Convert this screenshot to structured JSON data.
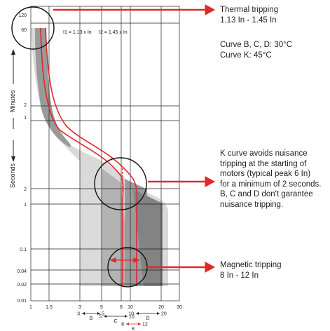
{
  "left_axis": {
    "minutes_label": "Minutes",
    "seconds_label": "Seconds",
    "minute_ticks": [
      "120",
      "60",
      "2",
      "1"
    ],
    "second_ticks": [
      "2",
      "1",
      "0.1",
      "0.04",
      "0.02",
      "0.01"
    ]
  },
  "x_axis": {
    "ticks": [
      "1",
      "1.5",
      "3",
      "5",
      "8",
      "10",
      "20",
      "30"
    ]
  },
  "thresholds": {
    "i1": "I1 = 1.13 x In",
    "i2": "I2 = 1.45 x In"
  },
  "ranges": [
    {
      "letter": "B",
      "low": "3",
      "high": "5"
    },
    {
      "letter": "C",
      "low": "5",
      "high": "10"
    },
    {
      "letter": "D",
      "low": "10",
      "high": "20"
    },
    {
      "letter": "K",
      "low": "8",
      "high": "12"
    }
  ],
  "annotations": {
    "thermal": "Thermal tripping\n1.13 In - 1.45 In",
    "thermal_curves": "Curve B, C, D: 30°C\nCurve K: 45°C",
    "k_curve": "K curve avoids nuisance\ntripping at the starting of\nmotors (typical peak 6 In)\nfor a minimum of 2 seconds.\nB, C and D don't garantee\nnuisance tripping.",
    "magnetic": "Magnetic tripping\n8 In - 12 In"
  },
  "colors": {
    "red": "#e0282a",
    "band_light": "#d4d4d4",
    "band_mid": "#a9a9a9",
    "band_dark": "#8a8a8a",
    "grid": "#222222"
  }
}
